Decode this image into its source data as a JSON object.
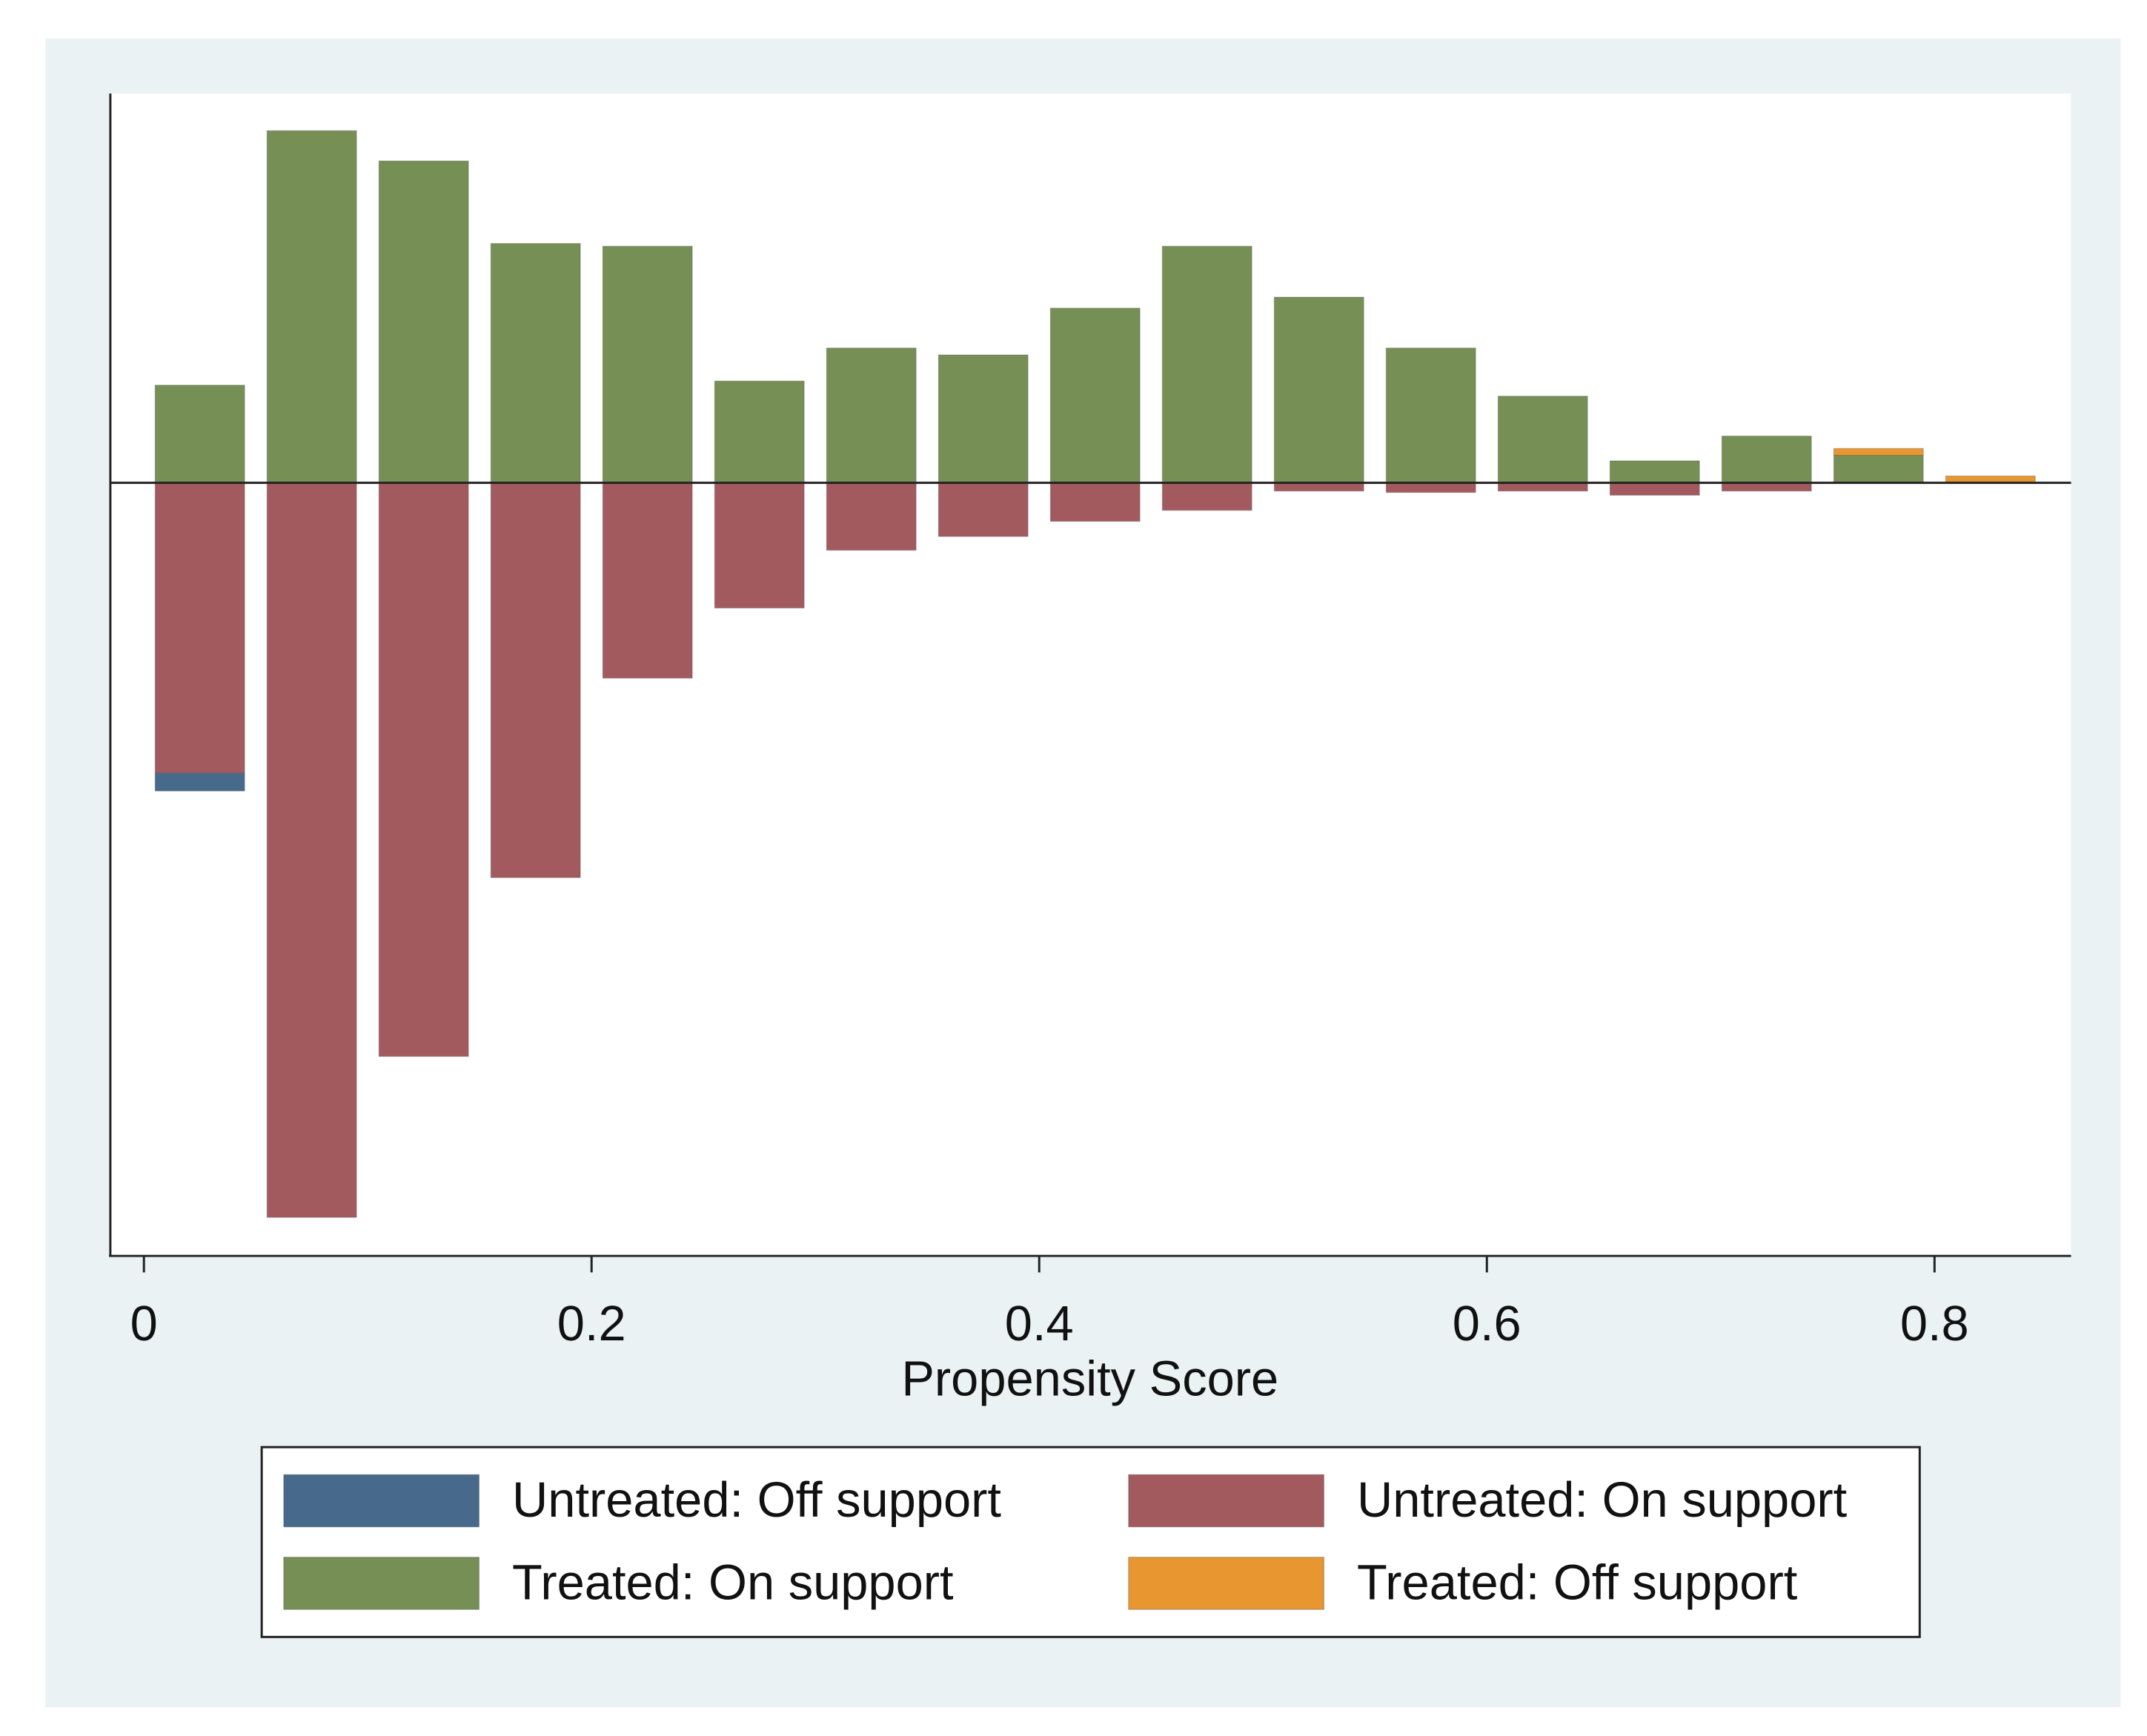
{
  "chart_data": {
    "type": "histogram",
    "x_label": "Propensity Score",
    "bins": [
      0,
      0.05,
      0.1,
      0.15,
      0.2,
      0.25,
      0.3,
      0.35,
      0.4,
      0.45,
      0.5,
      0.55,
      0.6,
      0.65,
      0.7,
      0.75,
      0.8,
      0.85
    ],
    "series": [
      {
        "name": "Untreated: Off support",
        "color": "#476a8c",
        "values": [
          -13,
          0,
          0,
          0,
          0,
          0,
          0,
          0,
          0,
          0,
          0,
          0,
          0,
          0,
          0,
          0,
          0
        ]
      },
      {
        "name": "Untreated: On support",
        "color": "#a35a5e",
        "values": [
          -211,
          -534,
          -417,
          -287,
          -142,
          -91,
          -49,
          -39,
          -28,
          -20,
          -6,
          -7,
          -6,
          -9,
          -6,
          0,
          0
        ]
      },
      {
        "name": "Treated: On support",
        "color": "#768f55",
        "values": [
          71,
          256,
          234,
          174,
          172,
          74,
          98,
          93,
          127,
          172,
          135,
          98,
          63,
          16,
          34,
          20,
          0
        ]
      },
      {
        "name": "Treated: Off support",
        "color": "#e8962f",
        "values": [
          0,
          0,
          0,
          0,
          0,
          0,
          0,
          0,
          0,
          0,
          0,
          0,
          0,
          0,
          0,
          5,
          5
        ]
      }
    ],
    "xlim": [
      -0.015,
      0.861
    ],
    "xticks": [
      0,
      0.2,
      0.4,
      0.6,
      0.8
    ],
    "ylim": [
      -561,
      283
    ]
  }
}
